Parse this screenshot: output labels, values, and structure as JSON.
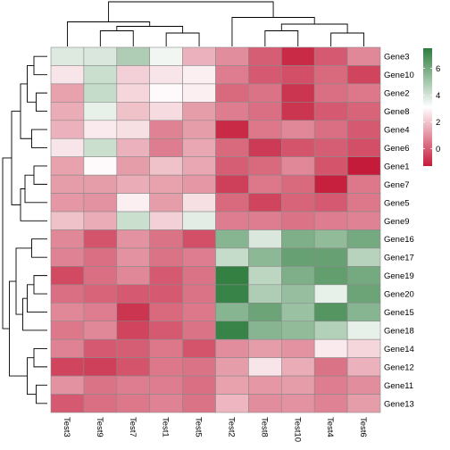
{
  "chart_data": {
    "type": "heatmap",
    "columns": [
      "Test3",
      "Test9",
      "Test7",
      "Test1",
      "Test5",
      "Test2",
      "Test8",
      "Test10",
      "Test4",
      "Test6"
    ],
    "rows": [
      "Gene3",
      "Gene10",
      "Gene2",
      "Gene8",
      "Gene4",
      "Gene6",
      "Gene1",
      "Gene7",
      "Gene5",
      "Gene9",
      "Gene16",
      "Gene17",
      "Gene19",
      "Gene20",
      "Gene15",
      "Gene18",
      "Gene14",
      "Gene12",
      "Gene11",
      "Gene13"
    ],
    "values": [
      [
        3.8,
        3.9,
        4.8,
        3.4,
        1.6,
        0.9,
        0.0,
        -1.0,
        -0.1,
        0.8
      ],
      [
        2.6,
        4.2,
        2.2,
        2.6,
        2.8,
        0.6,
        -0.1,
        -0.3,
        0.2,
        -0.5
      ],
      [
        1.3,
        4.3,
        2.3,
        3.0,
        2.8,
        0.2,
        0.4,
        -0.8,
        0.3,
        0.5
      ],
      [
        1.5,
        3.6,
        1.9,
        2.4,
        1.2,
        0.6,
        0.3,
        -0.8,
        -0.1,
        0.1
      ],
      [
        1.6,
        2.7,
        2.5,
        0.7,
        1.2,
        -1.0,
        0.5,
        0.8,
        0.3,
        -0.1
      ],
      [
        2.6,
        4.2,
        1.6,
        0.6,
        1.4,
        0.2,
        -0.7,
        -0.2,
        0.0,
        -0.3
      ],
      [
        1.3,
        3.0,
        1.2,
        1.9,
        1.4,
        0.0,
        0.2,
        0.8,
        -0.2,
        -1.3
      ],
      [
        1.2,
        1.2,
        1.5,
        1.3,
        1.1,
        -0.6,
        0.5,
        0.2,
        -1.2,
        0.5
      ],
      [
        1.1,
        1.0,
        2.8,
        1.2,
        2.5,
        0.2,
        -0.5,
        0.1,
        -0.1,
        0.5
      ],
      [
        1.9,
        1.5,
        4.2,
        2.2,
        3.7,
        0.6,
        0.6,
        0.4,
        0.6,
        0.7
      ],
      [
        0.8,
        -0.2,
        1.0,
        0.4,
        -0.3,
        5.6,
        3.9,
        5.8,
        5.4,
        6.0
      ],
      [
        0.7,
        0.3,
        1.0,
        0.4,
        0.6,
        4.3,
        5.5,
        6.3,
        6.3,
        4.6
      ],
      [
        -0.4,
        0.3,
        0.8,
        -0.1,
        0.4,
        7.4,
        4.5,
        5.8,
        6.4,
        6.0
      ],
      [
        0.3,
        0.1,
        -0.1,
        -0.1,
        0.4,
        7.3,
        4.8,
        5.3,
        3.6,
        6.2
      ],
      [
        0.8,
        0.6,
        -0.8,
        0.2,
        0.5,
        5.6,
        6.2,
        5.2,
        6.7,
        5.6
      ],
      [
        0.5,
        0.8,
        -0.5,
        -0.1,
        0.4,
        7.3,
        5.6,
        5.4,
        4.7,
        3.6
      ],
      [
        0.7,
        -0.1,
        0.0,
        0.5,
        -0.2,
        0.9,
        1.2,
        1.0,
        2.7,
        2.3
      ],
      [
        -0.5,
        -0.6,
        -0.2,
        0.5,
        0.4,
        1.2,
        2.6,
        1.5,
        0.4,
        1.6
      ],
      [
        1.0,
        0.4,
        0.6,
        0.6,
        0.3,
        1.3,
        1.1,
        1.2,
        0.6,
        0.9
      ],
      [
        -0.1,
        0.3,
        0.5,
        0.7,
        0.4,
        1.7,
        0.9,
        1.0,
        0.7,
        1.2
      ]
    ],
    "legend": {
      "ticks": [
        0,
        2,
        4,
        6
      ],
      "labels": [
        "0",
        "2",
        "4",
        "6"
      ],
      "min": -1.3,
      "max": 7.5,
      "colors": [
        "#c51b3a",
        "#ffffff",
        "#2e7d3e"
      ]
    },
    "row_dendrogram": {
      "merges": [
        [
          0,
          1
        ],
        [
          2,
          3
        ],
        [
          20,
          21
        ],
        [
          4,
          5
        ],
        [
          22,
          23
        ],
        [
          6,
          7
        ],
        [
          25,
          8
        ],
        [
          26,
          9
        ],
        [
          24,
          27
        ],
        [
          10,
          11
        ],
        [
          12,
          13
        ],
        [
          30,
          14
        ],
        [
          31,
          15
        ],
        [
          29,
          32
        ],
        [
          16,
          17
        ],
        [
          18,
          19
        ],
        [
          34,
          35
        ],
        [
          33,
          36
        ],
        [
          28,
          37
        ]
      ],
      "heights": [
        0.3,
        0.25,
        0.45,
        0.35,
        0.6,
        0.3,
        0.5,
        0.6,
        0.8,
        0.35,
        0.3,
        0.45,
        0.55,
        0.7,
        0.3,
        0.25,
        0.45,
        0.85,
        1.0
      ]
    },
    "column_dendrogram": {
      "merges": [
        [
          1,
          2
        ],
        [
          3,
          4
        ],
        [
          10,
          11
        ],
        [
          0,
          12
        ],
        [
          6,
          7
        ],
        [
          8,
          9
        ],
        [
          14,
          15
        ],
        [
          5,
          16
        ],
        [
          13,
          17
        ]
      ],
      "heights": [
        0.35,
        0.3,
        0.45,
        0.55,
        0.35,
        0.3,
        0.5,
        0.65,
        1.0
      ]
    }
  }
}
